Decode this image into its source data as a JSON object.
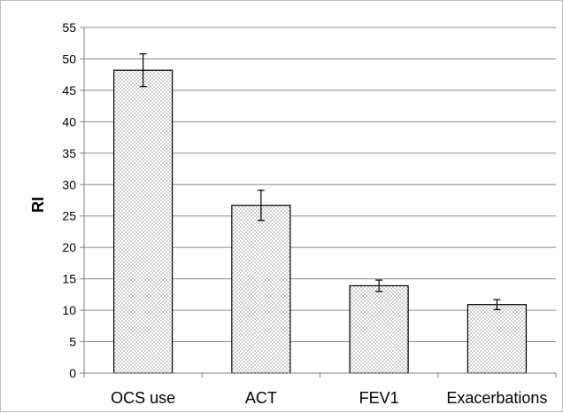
{
  "chart_data": {
    "type": "bar",
    "title": "",
    "xlabel": "",
    "ylabel": "RI",
    "ylim": [
      0,
      55
    ],
    "y_ticks": [
      0,
      5,
      10,
      15,
      20,
      25,
      30,
      35,
      40,
      45,
      50,
      55
    ],
    "grid": true,
    "categories": [
      "OCS use",
      "ACT",
      "FEV1",
      "Exacerbations"
    ],
    "values": [
      48.2,
      26.7,
      13.9,
      10.9
    ],
    "errors": [
      2.6,
      2.4,
      0.9,
      0.8
    ],
    "bar_fill": "dotted",
    "colors": {
      "bar_fill": "#ffffff",
      "bar_dots": "#555555",
      "bar_edge": "#000000",
      "grid": "#8c8c8c",
      "axis": "#808080"
    }
  }
}
